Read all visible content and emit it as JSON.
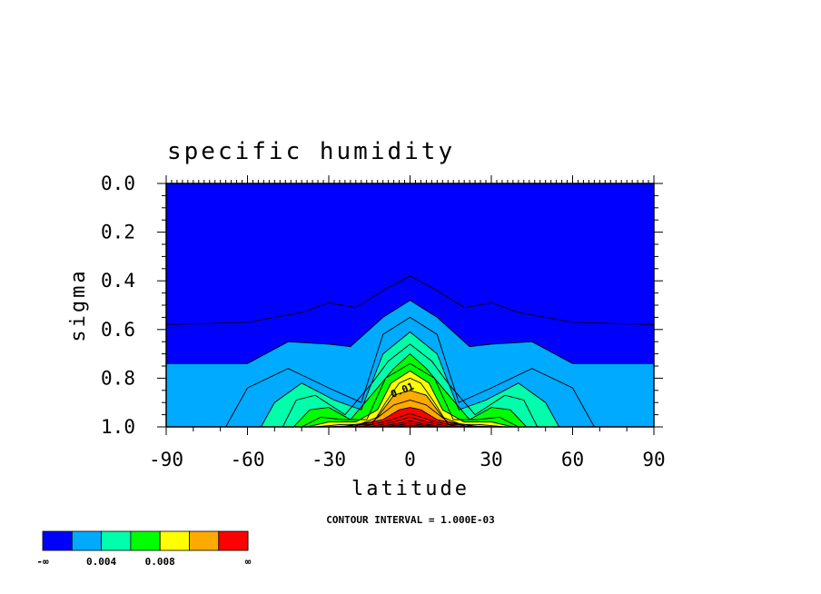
{
  "chart_data": {
    "type": "contour",
    "title": "specific humidity",
    "xlabel": "latitude",
    "ylabel": "sigma",
    "xlim": [
      -90,
      90
    ],
    "ylim": [
      1.0,
      0.0
    ],
    "x_ticks": [
      "-90",
      "-60",
      "-30",
      "0",
      "30",
      "60",
      "90"
    ],
    "y_ticks": [
      "0.0",
      "0.2",
      "0.4",
      "0.6",
      "0.8",
      "1.0"
    ],
    "contour_interval_text": "CONTOUR INTERVAL = 1.000E-03",
    "contour_line_label": "0.01",
    "colorbar": {
      "colors": [
        "#0000ff",
        "#00aaff",
        "#00ffaa",
        "#00ff00",
        "#ffff00",
        "#ffaa00",
        "#ff0000"
      ],
      "labels": [
        "-∞",
        "0.004",
        "0.008",
        "∞"
      ],
      "levels": [
        0.002,
        0.004,
        0.006,
        0.008,
        0.01,
        0.012
      ]
    },
    "levels": [
      0.001,
      0.002,
      0.003,
      0.004,
      0.005,
      0.006,
      0.007,
      0.008,
      0.009,
      0.01,
      0.011,
      0.012,
      0.013,
      0.014,
      0.015,
      0.016,
      0.017
    ],
    "contour_tops": [
      {
        "level": 0.001,
        "points": [
          [
            -90,
            0.58
          ],
          [
            -60,
            0.57
          ],
          [
            -40,
            0.53
          ],
          [
            -30,
            0.49
          ],
          [
            -20,
            0.51
          ],
          [
            -10,
            0.44
          ],
          [
            0,
            0.38
          ],
          [
            10,
            0.44
          ],
          [
            20,
            0.51
          ],
          [
            30,
            0.49
          ],
          [
            40,
            0.53
          ],
          [
            60,
            0.57
          ],
          [
            90,
            0.58
          ]
        ]
      },
      {
        "level": 0.002,
        "points": [
          [
            -90,
            0.74
          ],
          [
            -60,
            0.74
          ],
          [
            -45,
            0.65
          ],
          [
            -30,
            0.66
          ],
          [
            -22,
            0.67
          ],
          [
            -10,
            0.55
          ],
          [
            0,
            0.48
          ],
          [
            10,
            0.55
          ],
          [
            22,
            0.67
          ],
          [
            30,
            0.66
          ],
          [
            45,
            0.65
          ],
          [
            60,
            0.74
          ],
          [
            90,
            0.74
          ]
        ]
      },
      {
        "level": 0.003,
        "points": [
          [
            -68,
            1.0
          ],
          [
            -60,
            0.84
          ],
          [
            -45,
            0.76
          ],
          [
            -30,
            0.84
          ],
          [
            -18,
            0.9
          ],
          [
            -10,
            0.62
          ],
          [
            0,
            0.55
          ],
          [
            10,
            0.62
          ],
          [
            18,
            0.9
          ],
          [
            30,
            0.84
          ],
          [
            45,
            0.76
          ],
          [
            60,
            0.84
          ],
          [
            68,
            1.0
          ]
        ]
      },
      {
        "level": 0.004,
        "points": [
          [
            -55,
            1.0
          ],
          [
            -50,
            0.9
          ],
          [
            -40,
            0.82
          ],
          [
            -28,
            0.89
          ],
          [
            -18,
            0.93
          ],
          [
            -10,
            0.7
          ],
          [
            0,
            0.61
          ],
          [
            10,
            0.7
          ],
          [
            18,
            0.93
          ],
          [
            28,
            0.89
          ],
          [
            40,
            0.82
          ],
          [
            50,
            0.9
          ],
          [
            55,
            1.0
          ]
        ]
      },
      {
        "level": 0.005,
        "points": [
          [
            -47,
            1.0
          ],
          [
            -42,
            0.89
          ],
          [
            -35,
            0.87
          ],
          [
            -24,
            0.95
          ],
          [
            -14,
            0.82
          ],
          [
            -8,
            0.73
          ],
          [
            0,
            0.66
          ],
          [
            8,
            0.73
          ],
          [
            14,
            0.82
          ],
          [
            24,
            0.95
          ],
          [
            35,
            0.87
          ],
          [
            42,
            0.89
          ],
          [
            47,
            1.0
          ]
        ]
      },
      {
        "level": 0.006,
        "points": [
          [
            -43,
            1.0
          ],
          [
            -37,
            0.93
          ],
          [
            -30,
            0.92
          ],
          [
            -22,
            0.97
          ],
          [
            -12,
            0.84
          ],
          [
            -6,
            0.76
          ],
          [
            0,
            0.7
          ],
          [
            6,
            0.76
          ],
          [
            12,
            0.84
          ],
          [
            22,
            0.97
          ],
          [
            30,
            0.92
          ],
          [
            37,
            0.93
          ],
          [
            43,
            1.0
          ]
        ]
      },
      {
        "level": 0.007,
        "points": [
          [
            -40,
            1.0
          ],
          [
            -33,
            0.96
          ],
          [
            -25,
            0.97
          ],
          [
            -16,
            0.97
          ],
          [
            -9,
            0.8
          ],
          [
            0,
            0.74
          ],
          [
            9,
            0.8
          ],
          [
            16,
            0.97
          ],
          [
            25,
            0.97
          ],
          [
            33,
            0.96
          ],
          [
            40,
            1.0
          ]
        ]
      },
      {
        "level": 0.008,
        "points": [
          [
            -38,
            1.0
          ],
          [
            -30,
            0.98
          ],
          [
            -20,
            0.98
          ],
          [
            -12,
            0.93
          ],
          [
            -7,
            0.82
          ],
          [
            0,
            0.77
          ],
          [
            7,
            0.82
          ],
          [
            12,
            0.93
          ],
          [
            20,
            0.98
          ],
          [
            30,
            0.98
          ],
          [
            38,
            1.0
          ]
        ]
      },
      {
        "level": 0.009,
        "points": [
          [
            -35,
            1.0
          ],
          [
            -25,
            0.99
          ],
          [
            -14,
            0.99
          ],
          [
            -9,
            0.9
          ],
          [
            -4,
            0.82
          ],
          [
            0,
            0.8
          ],
          [
            4,
            0.82
          ],
          [
            9,
            0.9
          ],
          [
            14,
            0.99
          ],
          [
            25,
            0.99
          ],
          [
            35,
            1.0
          ]
        ]
      },
      {
        "level": 0.01,
        "points": [
          [
            -32,
            1.0
          ],
          [
            -20,
            0.995
          ],
          [
            -12,
            0.96
          ],
          [
            -6,
            0.87
          ],
          [
            0,
            0.85
          ],
          [
            6,
            0.87
          ],
          [
            12,
            0.96
          ],
          [
            20,
            0.995
          ],
          [
            32,
            1.0
          ]
        ]
      },
      {
        "level": 0.011,
        "points": [
          [
            -26,
            1.0
          ],
          [
            -14,
            0.98
          ],
          [
            -6,
            0.91
          ],
          [
            0,
            0.89
          ],
          [
            6,
            0.91
          ],
          [
            14,
            0.98
          ],
          [
            26,
            1.0
          ]
        ]
      },
      {
        "level": 0.012,
        "points": [
          [
            -22,
            1.0
          ],
          [
            -10,
            0.97
          ],
          [
            -4,
            0.93
          ],
          [
            0,
            0.92
          ],
          [
            4,
            0.93
          ],
          [
            10,
            0.97
          ],
          [
            22,
            1.0
          ]
        ]
      },
      {
        "level": 0.013,
        "points": [
          [
            -18,
            1.0
          ],
          [
            -8,
            0.975
          ],
          [
            0,
            0.945
          ],
          [
            8,
            0.975
          ],
          [
            18,
            1.0
          ]
        ]
      },
      {
        "level": 0.014,
        "points": [
          [
            -15,
            1.0
          ],
          [
            -6,
            0.98
          ],
          [
            0,
            0.96
          ],
          [
            6,
            0.98
          ],
          [
            15,
            1.0
          ]
        ]
      },
      {
        "level": 0.015,
        "points": [
          [
            -12,
            1.0
          ],
          [
            -4,
            0.985
          ],
          [
            0,
            0.975
          ],
          [
            4,
            0.985
          ],
          [
            12,
            1.0
          ]
        ]
      },
      {
        "level": 0.016,
        "points": [
          [
            -9,
            1.0
          ],
          [
            0,
            0.985
          ],
          [
            9,
            1.0
          ]
        ]
      },
      {
        "level": 0.017,
        "points": [
          [
            -6,
            1.0
          ],
          [
            0,
            0.993
          ],
          [
            6,
            1.0
          ]
        ]
      }
    ]
  }
}
